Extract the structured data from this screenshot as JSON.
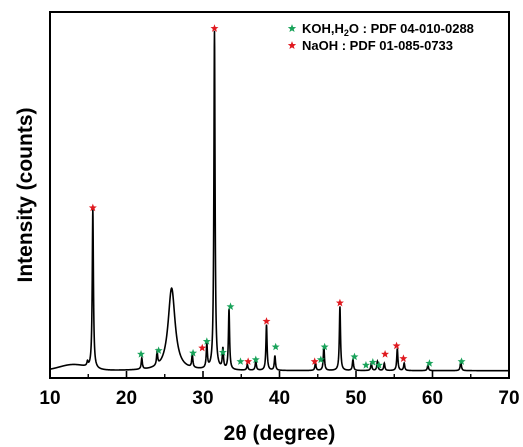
{
  "chart_data": {
    "type": "line",
    "title": "",
    "xlabel": "2θ (degree)",
    "ylabel": "Intensity (counts)",
    "xlim": [
      10,
      70
    ],
    "ylim": [
      0,
      100
    ],
    "x_ticks": [
      10,
      20,
      30,
      40,
      50,
      60,
      70
    ],
    "y_tick_labels": false,
    "grid": false,
    "legend": {
      "placement": "top-right",
      "entries": [
        {
          "marker": "star",
          "color": "#19a35a",
          "label_pre": "KOH,H",
          "label_sub": "2",
          "label_post": "O : PDF 04-010-0288"
        },
        {
          "marker": "star",
          "color": "#e0191f",
          "label_pre": "NaOH : PDF 01-085-0733",
          "label_sub": "",
          "label_post": ""
        }
      ]
    },
    "series": [
      {
        "line_color": "#000000",
        "baseline": 2.0,
        "hump": {
          "center": 13.0,
          "width": 2.5,
          "height": 1.6
        },
        "broad_peaks": [
          {
            "x": 25.9,
            "height": 22.5,
            "width": 0.55
          }
        ],
        "peaks": [
          {
            "x": 14.9,
            "height": 1.2
          },
          {
            "x": 15.6,
            "height": 43.5
          },
          {
            "x": 22.0,
            "height": 3.0
          },
          {
            "x": 24.0,
            "height": 3.5
          },
          {
            "x": 28.6,
            "height": 3.5
          },
          {
            "x": 30.5,
            "height": 6.5
          },
          {
            "x": 31.5,
            "height": 92.5
          },
          {
            "x": 32.6,
            "height": 5.5
          },
          {
            "x": 33.4,
            "height": 16.5
          },
          {
            "x": 35.8,
            "height": 1.5
          },
          {
            "x": 36.9,
            "height": 2.5
          },
          {
            "x": 38.3,
            "height": 12.5
          },
          {
            "x": 39.4,
            "height": 4.0
          },
          {
            "x": 44.7,
            "height": 2.0
          },
          {
            "x": 45.8,
            "height": 6.5
          },
          {
            "x": 47.9,
            "height": 17.5
          },
          {
            "x": 49.6,
            "height": 3.0
          },
          {
            "x": 52.0,
            "height": 2.0
          },
          {
            "x": 52.8,
            "height": 2.5
          },
          {
            "x": 53.7,
            "height": 2.0
          },
          {
            "x": 55.4,
            "height": 6.0
          },
          {
            "x": 56.3,
            "height": 2.0
          },
          {
            "x": 59.4,
            "height": 1.5
          },
          {
            "x": 63.7,
            "height": 2.5
          }
        ]
      }
    ],
    "annotations": [
      {
        "x": 15.6,
        "y": 46.5,
        "color": "#e0191f",
        "phase": "NaOH"
      },
      {
        "x": 31.5,
        "y": 95.5,
        "color": "#e0191f",
        "phase": "NaOH"
      },
      {
        "x": 21.9,
        "y": 6.5,
        "color": "#19a35a",
        "phase": "KOH,H2O"
      },
      {
        "x": 24.2,
        "y": 7.5,
        "color": "#19a35a",
        "phase": "KOH,H2O"
      },
      {
        "x": 28.7,
        "y": 6.8,
        "color": "#19a35a",
        "phase": "KOH,H2O"
      },
      {
        "x": 30.5,
        "y": 10.0,
        "color": "#19a35a",
        "phase": "KOH,H2O"
      },
      {
        "x": 29.9,
        "y": 8.2,
        "color": "#e0191f",
        "phase": "NaOH"
      },
      {
        "x": 32.6,
        "y": 7.0,
        "color": "#19a35a",
        "phase": "KOH,H2O"
      },
      {
        "x": 33.6,
        "y": 19.5,
        "color": "#19a35a",
        "phase": "KOH,H2O"
      },
      {
        "x": 34.9,
        "y": 4.5,
        "color": "#19a35a",
        "phase": "KOH,H2O"
      },
      {
        "x": 35.9,
        "y": 4.5,
        "color": "#e0191f",
        "phase": "NaOH"
      },
      {
        "x": 36.9,
        "y": 5.0,
        "color": "#19a35a",
        "phase": "KOH,H2O"
      },
      {
        "x": 38.3,
        "y": 15.5,
        "color": "#e0191f",
        "phase": "NaOH"
      },
      {
        "x": 39.5,
        "y": 8.5,
        "color": "#19a35a",
        "phase": "KOH,H2O"
      },
      {
        "x": 44.6,
        "y": 4.5,
        "color": "#e0191f",
        "phase": "NaOH"
      },
      {
        "x": 45.4,
        "y": 5.0,
        "color": "#19a35a",
        "phase": "KOH,H2O"
      },
      {
        "x": 45.9,
        "y": 8.5,
        "color": "#19a35a",
        "phase": "KOH,H2O"
      },
      {
        "x": 47.9,
        "y": 20.5,
        "color": "#e0191f",
        "phase": "NaOH"
      },
      {
        "x": 49.8,
        "y": 5.8,
        "color": "#19a35a",
        "phase": "KOH,H2O"
      },
      {
        "x": 51.3,
        "y": 3.5,
        "color": "#19a35a",
        "phase": "KOH,H2O"
      },
      {
        "x": 52.2,
        "y": 4.3,
        "color": "#19a35a",
        "phase": "KOH,H2O"
      },
      {
        "x": 53.0,
        "y": 3.5,
        "color": "#19a35a",
        "phase": "KOH,H2O"
      },
      {
        "x": 53.8,
        "y": 6.5,
        "color": "#e0191f",
        "phase": "NaOH"
      },
      {
        "x": 55.3,
        "y": 8.8,
        "color": "#e0191f",
        "phase": "NaOH"
      },
      {
        "x": 56.2,
        "y": 5.3,
        "color": "#e0191f",
        "phase": "NaOH"
      },
      {
        "x": 59.6,
        "y": 4.0,
        "color": "#19a35a",
        "phase": "KOH,H2O"
      },
      {
        "x": 63.8,
        "y": 4.5,
        "color": "#19a35a",
        "phase": "KOH,H2O"
      }
    ]
  }
}
